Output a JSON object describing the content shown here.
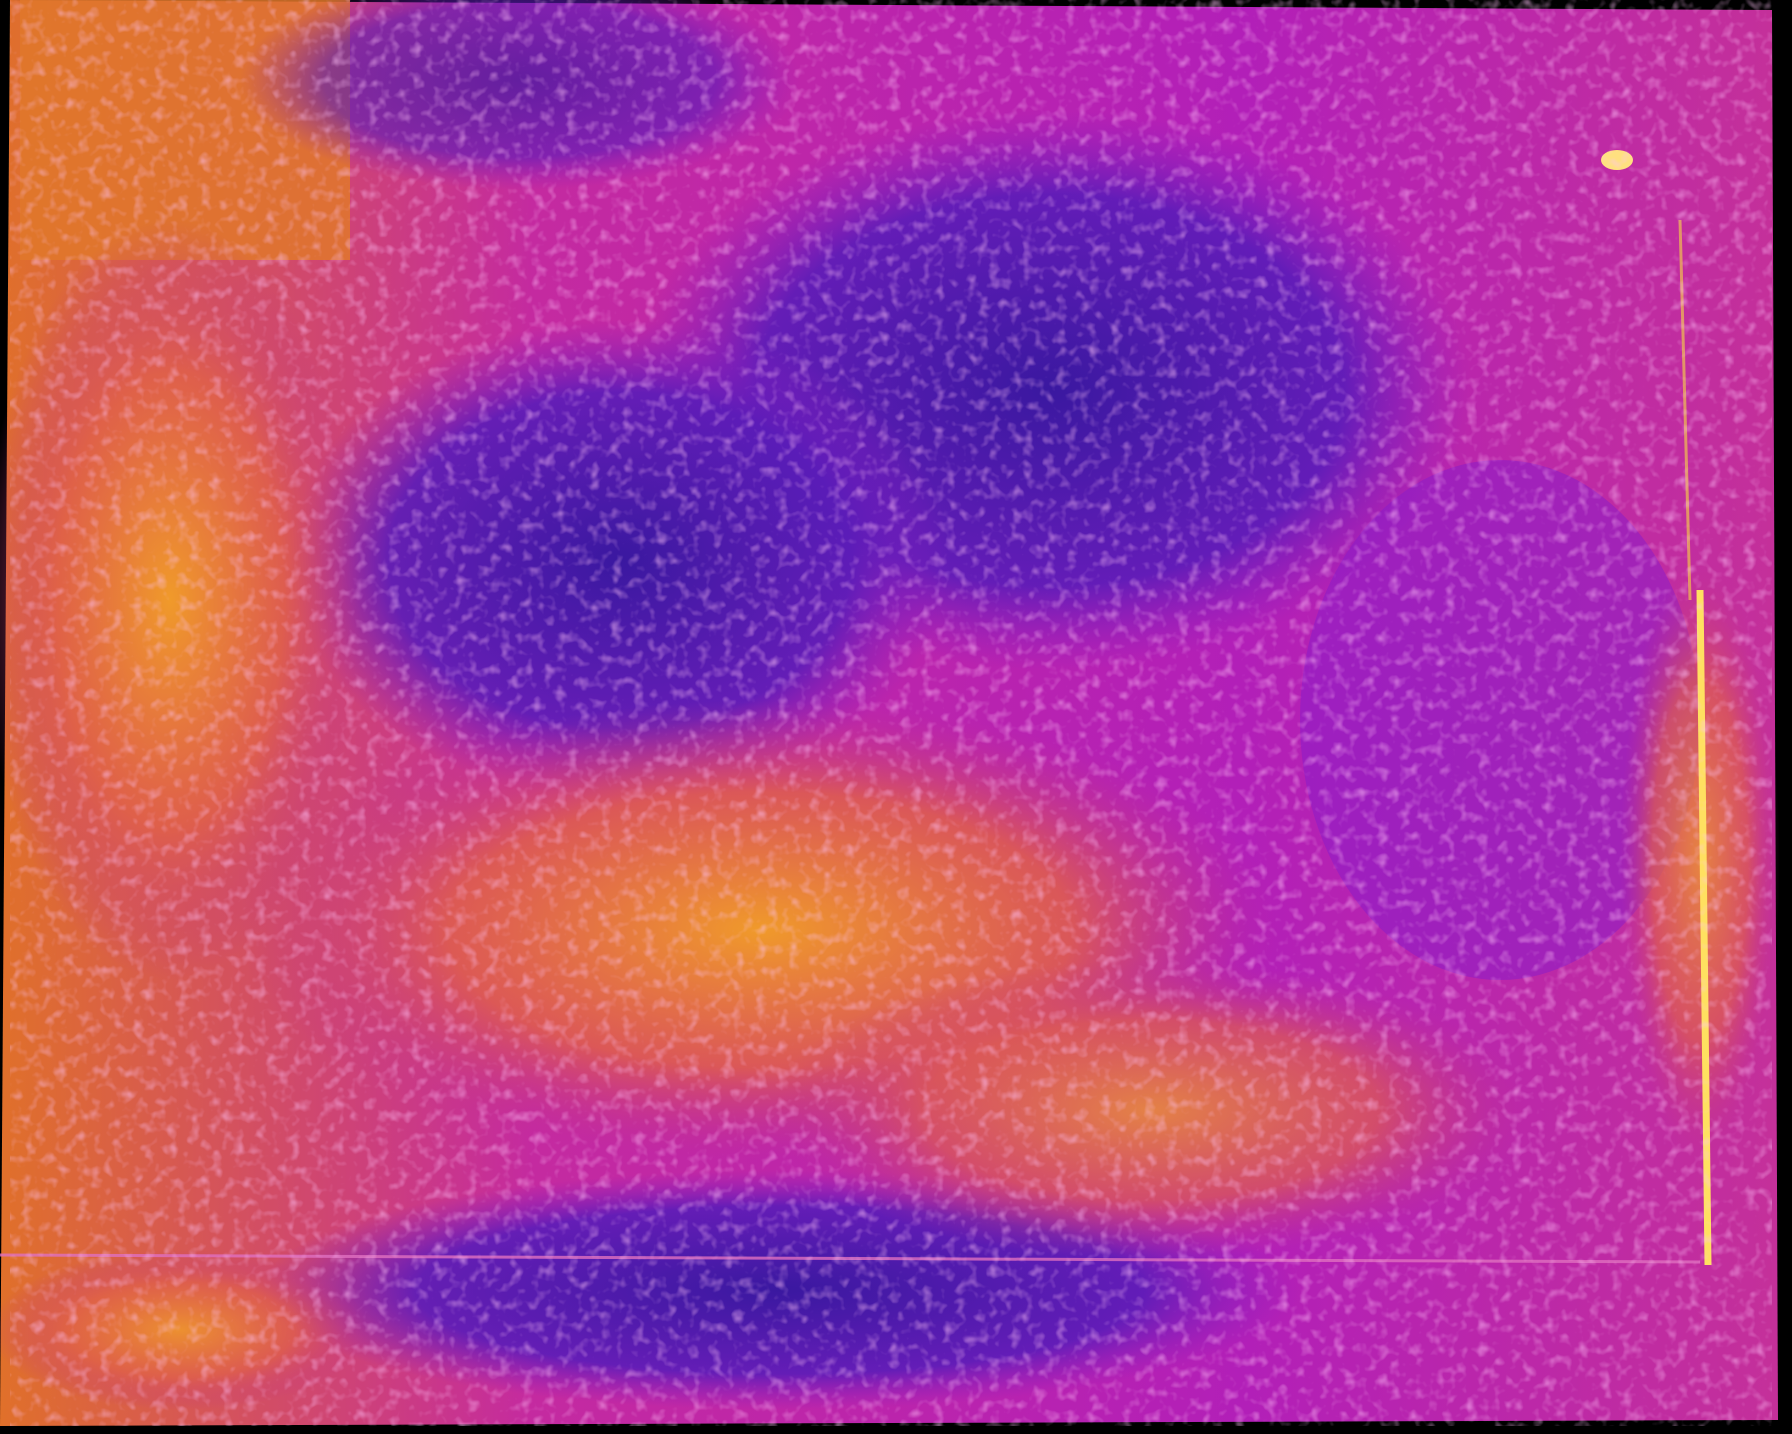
{
  "image": {
    "kind": "aerial-thermal-mosaic",
    "palette": "inferno",
    "colors": {
      "background": "#000000",
      "cold": "#3a1aa0",
      "cool": "#6a1cc0",
      "mid": "#b01fb0",
      "warm": "#e04a8a",
      "hot": "#f08a2a",
      "hottest": "#ffd040"
    },
    "icons": []
  }
}
